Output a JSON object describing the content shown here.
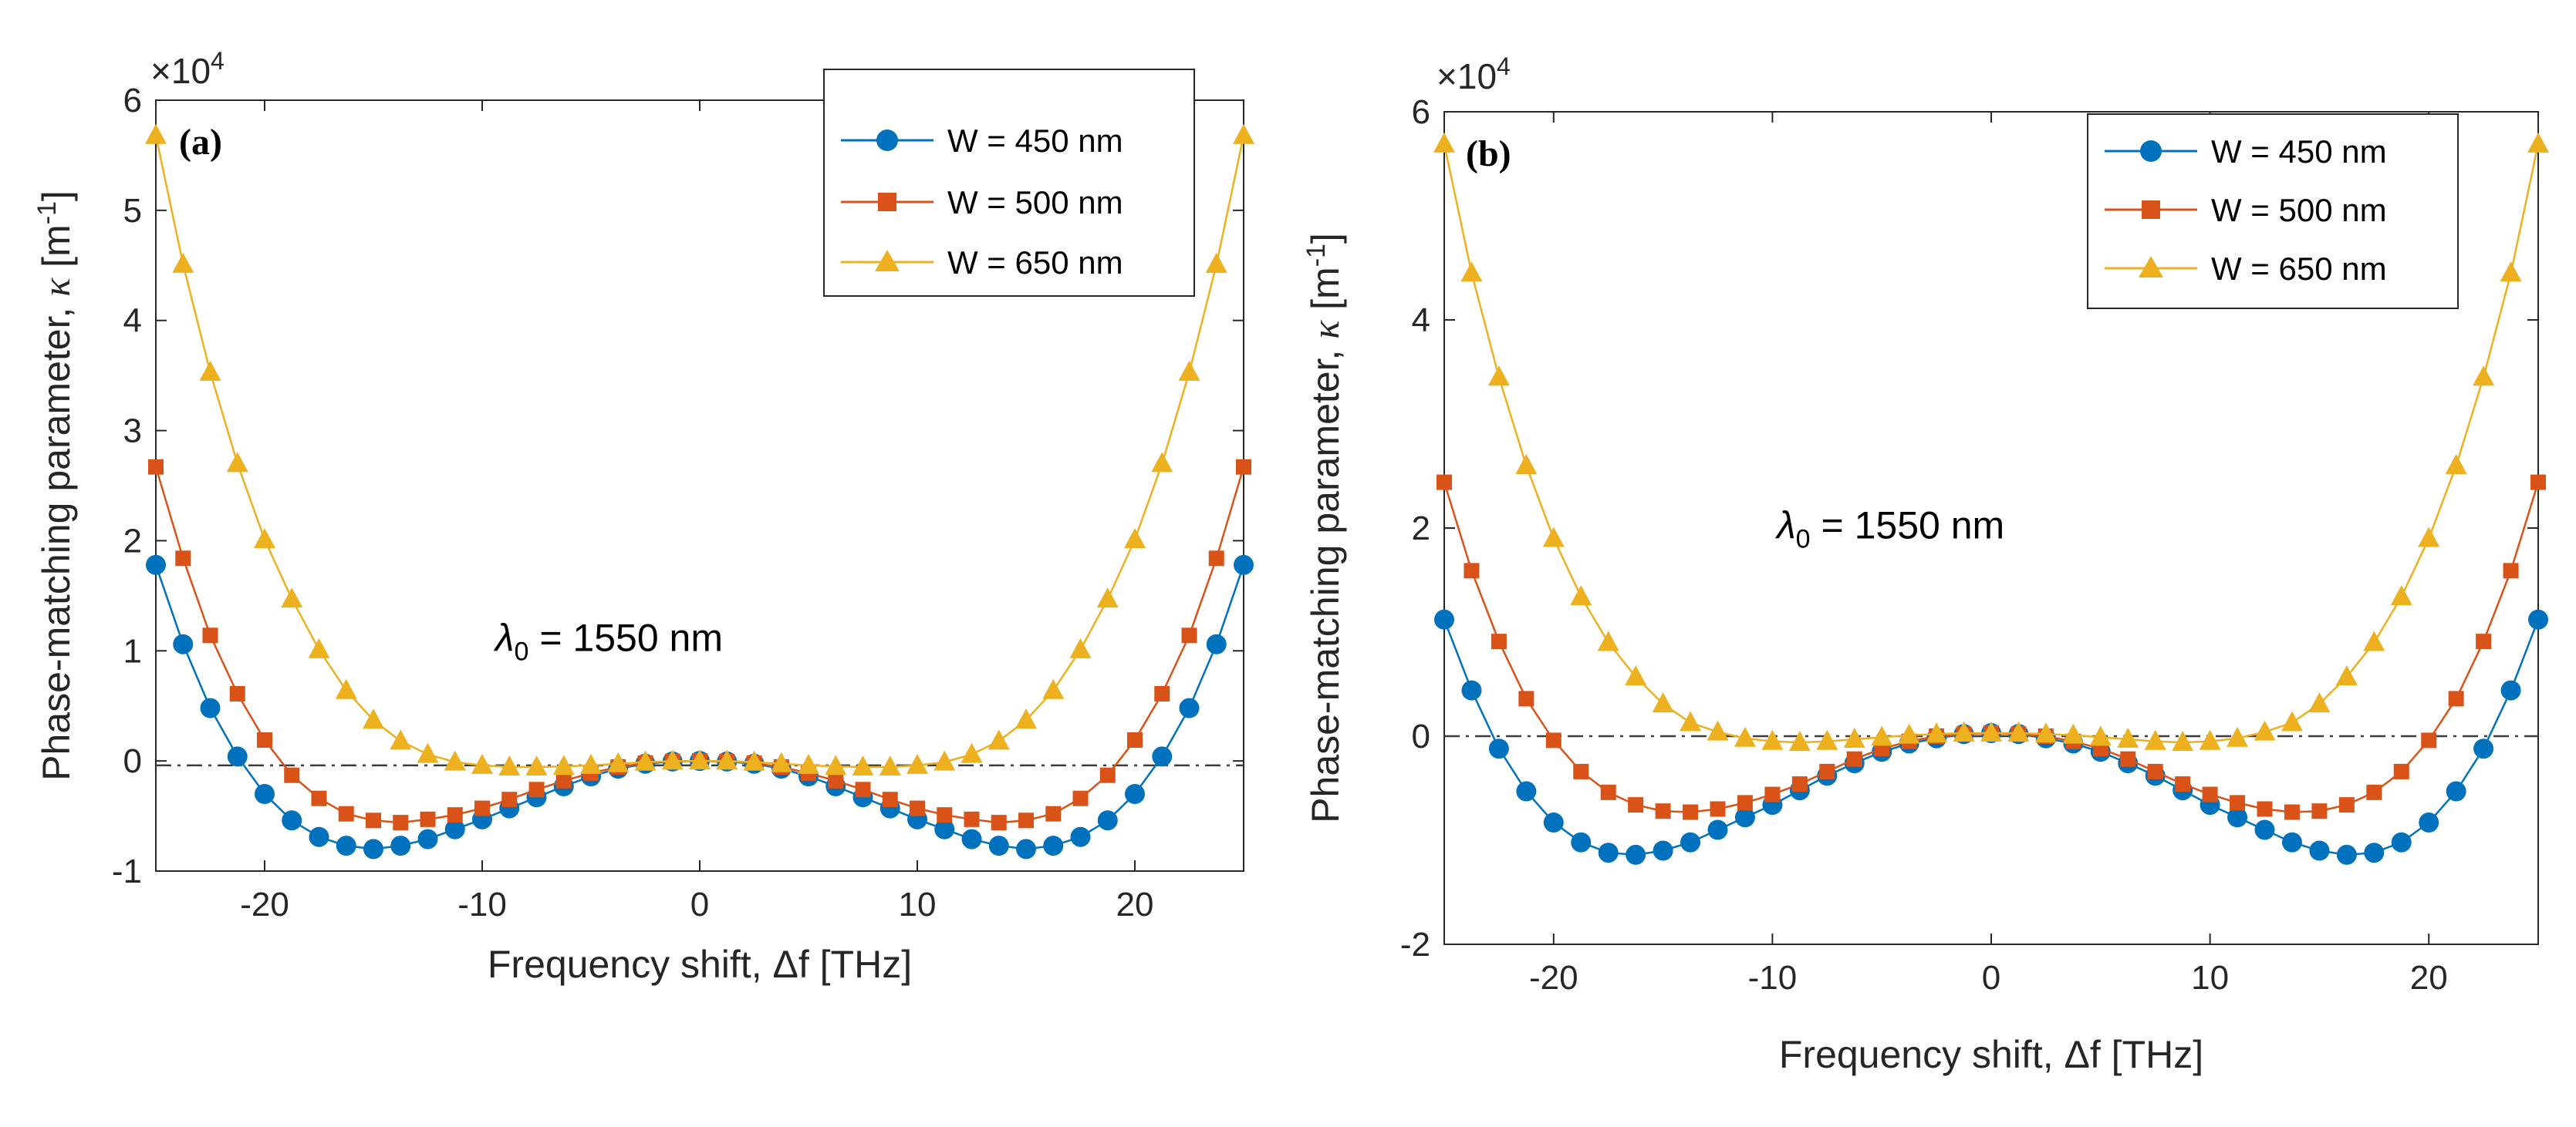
{
  "colors": {
    "series": [
      "#0072BD",
      "#D95319",
      "#EDB120"
    ],
    "axis": "#262626",
    "zero_line": "#3c3c3c"
  },
  "chart_data": [
    {
      "type": "line",
      "panel_label": "(a)",
      "multiplier": "×10",
      "multiplier_exp": "4",
      "xlabel": "Frequency shift, Δf  [THz]",
      "ylabel_main": "Phase-matching parameter, ",
      "ylabel_symbol": "κ",
      "ylabel_unit_pre": "  [m",
      "ylabel_unit_exp": "-1",
      "ylabel_unit_post": "]",
      "xlim": [
        -25,
        25
      ],
      "ylim": [
        -10000,
        60000
      ],
      "xticks": [
        -20,
        -10,
        0,
        10,
        20
      ],
      "xtick_labels": [
        "-20",
        "-10",
        "0",
        "10",
        "20"
      ],
      "yticks": [
        -10000,
        0,
        10000,
        20000,
        30000,
        40000,
        50000,
        60000
      ],
      "ytick_labels": [
        "-1",
        "0",
        "1",
        "2",
        "3",
        "4",
        "5",
        "6"
      ],
      "annotation": {
        "symbol": "λ",
        "sub": "0",
        "text": " = 1550 nm",
        "x": -9.4,
        "y": 10000
      },
      "zero_line_y": -400,
      "legend_position": "top-right",
      "x": [
        -25,
        -23.75,
        -22.5,
        -21.25,
        -20,
        -18.75,
        -17.5,
        -16.25,
        -15,
        -13.75,
        -12.5,
        -11.25,
        -10,
        -8.75,
        -7.5,
        -6.25,
        -5,
        -3.75,
        -2.5,
        -1.25,
        0,
        1.25,
        2.5,
        3.75,
        5,
        6.25,
        7.5,
        8.75,
        10,
        11.25,
        12.5,
        13.75,
        15,
        16.25,
        17.5,
        18.75,
        20,
        21.25,
        22.5,
        23.75,
        25
      ],
      "series": [
        {
          "name": "W = 450 nm",
          "marker": "circle",
          "values": [
            17800,
            10600,
            4800,
            400,
            -3000,
            -5400,
            -6900,
            -7700,
            -8000,
            -7700,
            -7100,
            -6200,
            -5300,
            -4300,
            -3300,
            -2300,
            -1400,
            -700,
            -250,
            -50,
            0,
            -50,
            -250,
            -700,
            -1400,
            -2300,
            -3300,
            -4300,
            -5300,
            -6200,
            -7100,
            -7700,
            -8000,
            -7700,
            -6900,
            -5400,
            -3000,
            400,
            4800,
            10600,
            17800
          ]
        },
        {
          "name": "W = 500 nm",
          "marker": "square",
          "values": [
            26700,
            18400,
            11400,
            6100,
            1900,
            -1300,
            -3400,
            -4800,
            -5400,
            -5600,
            -5300,
            -4900,
            -4300,
            -3500,
            -2600,
            -1800,
            -1100,
            -550,
            -200,
            -40,
            0,
            -40,
            -200,
            -550,
            -1100,
            -1800,
            -2600,
            -3500,
            -4300,
            -4900,
            -5300,
            -5600,
            -5400,
            -4800,
            -3400,
            -1300,
            1900,
            6100,
            11400,
            18400,
            26700
          ]
        },
        {
          "name": "W = 650 nm",
          "marker": "triangle",
          "values": [
            56800,
            45100,
            35300,
            27000,
            20100,
            14700,
            10100,
            6400,
            3700,
            1800,
            600,
            -100,
            -400,
            -550,
            -550,
            -500,
            -400,
            -250,
            -100,
            -20,
            0,
            -20,
            -100,
            -250,
            -400,
            -500,
            -550,
            -550,
            -400,
            -100,
            600,
            1800,
            3700,
            6400,
            10100,
            14700,
            20100,
            27000,
            35300,
            45100,
            56800
          ]
        }
      ]
    },
    {
      "type": "line",
      "panel_label": "(b)",
      "multiplier": "×10",
      "multiplier_exp": "4",
      "xlabel": "Frequency shift, Δf  [THz]",
      "ylabel_main": "Phase-matching parameter, ",
      "ylabel_symbol": "κ",
      "ylabel_unit_pre": "  [m",
      "ylabel_unit_exp": "-1",
      "ylabel_unit_post": "]",
      "xlim": [
        -25,
        25
      ],
      "ylim": [
        -20000,
        60000
      ],
      "xticks": [
        -20,
        -10,
        0,
        10,
        20
      ],
      "xtick_labels": [
        "-20",
        "-10",
        "0",
        "10",
        "20"
      ],
      "yticks": [
        -20000,
        0,
        20000,
        40000,
        60000
      ],
      "ytick_labels": [
        "-2",
        "0",
        "2",
        "4",
        "6"
      ],
      "annotation": {
        "symbol": "λ",
        "sub": "0",
        "text": " = 1550 nm",
        "x": -9.8,
        "y": 19000
      },
      "zero_line_y": 0,
      "legend_position": "top-right",
      "x": [
        -25,
        -23.75,
        -22.5,
        -21.25,
        -20,
        -18.75,
        -17.5,
        -16.25,
        -15,
        -13.75,
        -12.5,
        -11.25,
        -10,
        -8.75,
        -7.5,
        -6.25,
        -5,
        -3.75,
        -2.5,
        -1.25,
        0,
        1.25,
        2.5,
        3.75,
        5,
        6.25,
        7.5,
        8.75,
        10,
        11.25,
        12.5,
        13.75,
        15,
        16.25,
        17.5,
        18.75,
        20,
        21.25,
        22.5,
        23.75,
        25
      ],
      "series": [
        {
          "name": "W = 450 nm",
          "marker": "circle",
          "values": [
            11200,
            4400,
            -1200,
            -5300,
            -8300,
            -10200,
            -11200,
            -11400,
            -11000,
            -10200,
            -9000,
            -7800,
            -6600,
            -5200,
            -3800,
            -2600,
            -1500,
            -700,
            -200,
            200,
            300,
            200,
            -200,
            -700,
            -1500,
            -2600,
            -3800,
            -5200,
            -6600,
            -7800,
            -9000,
            -10200,
            -11000,
            -11400,
            -11200,
            -10200,
            -8300,
            -5300,
            -1200,
            4400,
            11200
          ]
        },
        {
          "name": "W = 500 nm",
          "marker": "square",
          "values": [
            24400,
            15900,
            9100,
            3600,
            -400,
            -3400,
            -5400,
            -6600,
            -7200,
            -7300,
            -7000,
            -6400,
            -5600,
            -4600,
            -3400,
            -2200,
            -1200,
            -500,
            0,
            200,
            300,
            200,
            0,
            -500,
            -1200,
            -2200,
            -3400,
            -4600,
            -5600,
            -6400,
            -7000,
            -7300,
            -7200,
            -6600,
            -5400,
            -3400,
            -400,
            3600,
            9100,
            15900,
            24400
          ]
        },
        {
          "name": "W = 650 nm",
          "marker": "triangle",
          "values": [
            56900,
            44500,
            34500,
            26000,
            19000,
            13400,
            9000,
            5700,
            3100,
            1300,
            400,
            -200,
            -500,
            -600,
            -500,
            -300,
            -100,
            100,
            200,
            300,
            300,
            300,
            200,
            100,
            -100,
            -300,
            -500,
            -600,
            -500,
            -200,
            400,
            1300,
            3100,
            5700,
            9000,
            13400,
            19000,
            26000,
            34500,
            44500,
            56900
          ]
        }
      ]
    }
  ]
}
